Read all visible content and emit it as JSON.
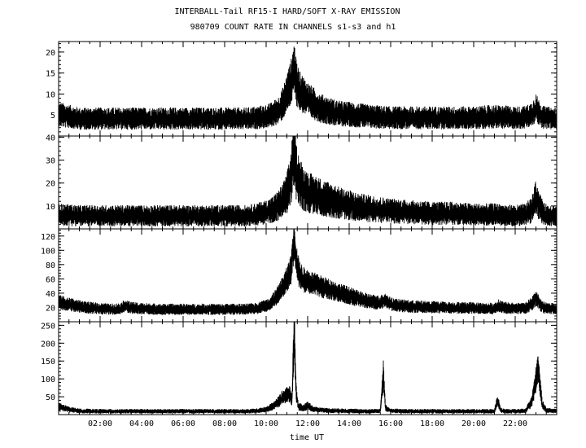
{
  "chart_data": {
    "type": "line",
    "title": "INTERBALL-Tail RF15-I HARD/SOFT X-RAY EMISSION",
    "subtitle": "980709  COUNT RATE IN CHANNELS s1-s3 and h1",
    "xlabel": "time UT",
    "x_unit": "hours UT",
    "xlim": [
      0,
      24
    ],
    "x_ticks": [
      2,
      4,
      6,
      8,
      10,
      12,
      14,
      16,
      18,
      20,
      22
    ],
    "x_tick_labels": [
      "02:00",
      "04:00",
      "06:00",
      "08:00",
      "10:00",
      "12:00",
      "14:00",
      "16:00",
      "18:00",
      "20:00",
      "22:00"
    ],
    "grid": false,
    "panels": [
      {
        "channel": "s1",
        "ylim": [
          0,
          22.5
        ],
        "y_ticks": [
          5,
          10,
          15,
          20
        ],
        "y_tick_labels": [
          "5",
          "10",
          "15",
          "20"
        ],
        "baseline": 4,
        "noise": 1.8,
        "series": {
          "x": [
            0,
            0.5,
            1,
            2,
            3,
            4,
            5,
            6,
            7,
            8,
            9,
            9.5,
            10,
            10.3,
            10.6,
            10.8,
            11,
            11.2,
            11.35,
            11.45,
            11.6,
            11.8,
            12,
            12.3,
            12.6,
            13,
            13.5,
            14,
            15,
            16,
            17,
            18,
            19,
            20,
            21,
            22,
            22.5,
            22.8,
            23.0,
            23.2,
            23.4,
            24
          ],
          "y": [
            5,
            4.5,
            4,
            4,
            4,
            4,
            4,
            4,
            4,
            4,
            4,
            4.2,
            4.5,
            5,
            6,
            7.5,
            10,
            12.5,
            16,
            12.5,
            10.5,
            9.5,
            8.5,
            7.5,
            6.5,
            5.8,
            5.2,
            5,
            4.5,
            4.2,
            4.2,
            4.2,
            4.2,
            4.2,
            4.5,
            4.2,
            4.3,
            5,
            6.5,
            5,
            4.2,
            4
          ]
        }
      },
      {
        "channel": "s2",
        "ylim": [
          0,
          40.5
        ],
        "y_ticks": [
          10,
          20,
          30,
          40
        ],
        "y_tick_labels": [
          "10",
          "20",
          "30",
          "40"
        ],
        "baseline": 5,
        "noise": 3,
        "series": {
          "x": [
            0,
            1,
            2,
            3,
            4,
            5,
            6,
            7,
            8,
            9,
            9.5,
            10,
            10.3,
            10.6,
            10.8,
            11,
            11.2,
            11.35,
            11.45,
            11.6,
            11.8,
            12,
            12.3,
            12.6,
            13,
            13.5,
            14,
            14.5,
            15,
            16,
            17,
            18,
            19,
            20,
            21,
            22,
            22.5,
            22.8,
            23.0,
            23.2,
            23.4,
            24
          ],
          "y": [
            6,
            5.5,
            5.5,
            5.5,
            5.5,
            5.5,
            5.5,
            5.5,
            5.5,
            5.5,
            6,
            7,
            8,
            10,
            12,
            15,
            22,
            33,
            24,
            20,
            17,
            15.5,
            14.5,
            13.5,
            12.5,
            11,
            10,
            9,
            8.5,
            7.5,
            7,
            6.5,
            6.5,
            6,
            6,
            5.5,
            6,
            8,
            13,
            9,
            6,
            5.5
          ]
        }
      },
      {
        "channel": "s3",
        "ylim": [
          0,
          130
        ],
        "y_ticks": [
          20,
          40,
          60,
          80,
          100,
          120
        ],
        "y_tick_labels": [
          "20",
          "40",
          "60",
          "80",
          "100",
          "120"
        ],
        "baseline": 15,
        "noise": 5,
        "series": {
          "x": [
            0,
            0.5,
            1,
            1.5,
            2,
            2.5,
            3,
            3.2,
            3.5,
            4,
            5,
            6,
            7,
            8,
            9,
            9.5,
            10,
            10.3,
            10.6,
            10.8,
            11,
            11.2,
            11.35,
            11.45,
            11.6,
            11.8,
            12,
            12.5,
            13,
            13.5,
            14,
            14.5,
            15,
            15.5,
            15.7,
            16,
            16.5,
            17,
            18,
            19,
            20,
            20.5,
            21,
            21.2,
            21.5,
            22,
            22.5,
            22.8,
            23.0,
            23.2,
            23.4,
            24
          ],
          "y": [
            27,
            24,
            21,
            19,
            18,
            17,
            18,
            22,
            19,
            18,
            17,
            17,
            17,
            17,
            17,
            18,
            22,
            28,
            38,
            48,
            58,
            72,
            118,
            85,
            65,
            58,
            55,
            50,
            45,
            40,
            36,
            31,
            28,
            26,
            30,
            24,
            22,
            21,
            20,
            19,
            19,
            18,
            18,
            22,
            19,
            18,
            19,
            24,
            33,
            24,
            19,
            17
          ]
        }
      },
      {
        "channel": "h1",
        "ylim": [
          0,
          260
        ],
        "y_ticks": [
          50,
          100,
          150,
          200,
          250
        ],
        "y_tick_labels": [
          "50",
          "100",
          "150",
          "200",
          "250"
        ],
        "baseline": 8,
        "noise": 4,
        "series": {
          "x": [
            0,
            0.5,
            1,
            2,
            3,
            4,
            5,
            6,
            7,
            8,
            9,
            9.5,
            10,
            10.3,
            10.6,
            10.8,
            11,
            11.15,
            11.25,
            11.35,
            11.45,
            11.55,
            11.8,
            12,
            12.3,
            13,
            14,
            15,
            15.5,
            15.65,
            15.75,
            16,
            17,
            18,
            19,
            20,
            21,
            21.15,
            21.3,
            21.5,
            22,
            22.5,
            22.8,
            22.95,
            23.1,
            23.3,
            23.5,
            24
          ],
          "y": [
            22,
            14,
            10,
            9,
            9,
            9,
            9,
            9,
            9,
            9,
            9,
            10,
            14,
            22,
            35,
            48,
            55,
            55,
            40,
            245,
            60,
            22,
            18,
            25,
            14,
            11,
            10,
            9,
            10,
            110,
            18,
            10,
            9,
            9,
            9,
            9,
            9,
            40,
            12,
            9,
            9,
            10,
            35,
            80,
            130,
            30,
            12,
            9
          ]
        }
      }
    ]
  }
}
